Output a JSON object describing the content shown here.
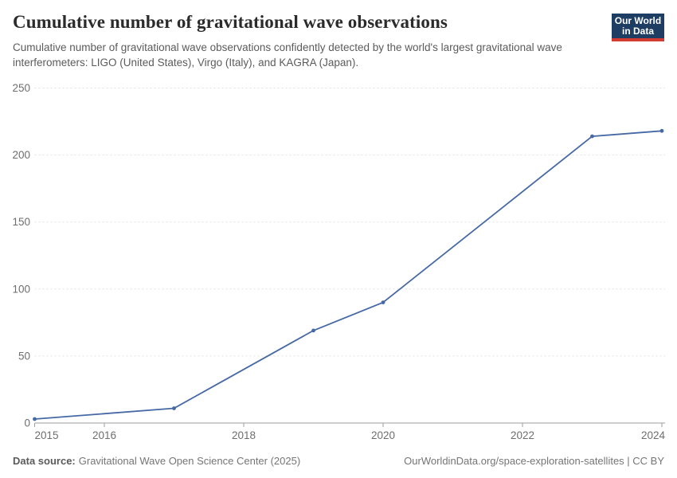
{
  "header": {
    "title": "Cumulative number of gravitational wave observations",
    "subtitle": "Cumulative number of gravitational wave observations confidently detected by the world's largest gravitational wave interferometers: LIGO (United States), Virgo (Italy), and KAGRA (Japan).",
    "logo": {
      "line1": "Our World",
      "line2": "in Data",
      "bg_color": "#1d3d63",
      "accent_color": "#d13b32"
    }
  },
  "chart_data": {
    "type": "line",
    "title": "Cumulative number of gravitational wave observations",
    "x": [
      2015,
      2017,
      2019,
      2020,
      2023,
      2024
    ],
    "values": [
      3,
      11,
      69,
      90,
      214,
      218
    ],
    "x_ticks": [
      "2015",
      "2016",
      "2018",
      "2020",
      "2022",
      "2024"
    ],
    "x_tick_values": [
      2015,
      2016,
      2018,
      2020,
      2022,
      2024
    ],
    "y_ticks": [
      "0",
      "50",
      "100",
      "150",
      "200",
      "250"
    ],
    "y_tick_values": [
      0,
      50,
      100,
      150,
      200,
      250
    ],
    "xlim": [
      2015,
      2024
    ],
    "ylim": [
      0,
      250
    ],
    "grid": "horizontal-dashed",
    "legend": "none",
    "xlabel": "",
    "ylabel": "",
    "line_color": "#4669a5",
    "gridline_color": "#e1e1e1",
    "axis_color": "#9e9e9e",
    "tick_label_color": "#6e6e6e"
  },
  "footer": {
    "datasource_label": "Data source:",
    "datasource_value": "Gravitational Wave Open Science Center (2025)",
    "attribution": "OurWorldinData.org/space-exploration-satellites | CC BY"
  }
}
